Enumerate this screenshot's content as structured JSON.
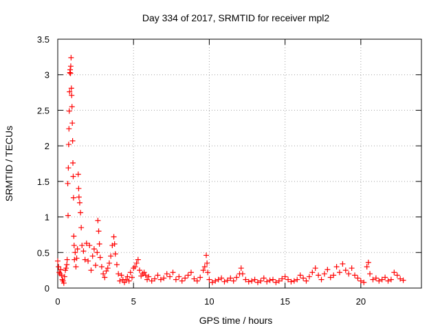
{
  "chart_data": {
    "type": "scatter",
    "title": "Day 334 of 2017, SRMTID for receiver mpl2",
    "xlabel": "GPS time / hours",
    "ylabel": "SRMTID / TECUs",
    "xlim": [
      0,
      24
    ],
    "ylim": [
      0,
      3.5
    ],
    "xticks": [
      0,
      5,
      10,
      15,
      20
    ],
    "xtick_labels": [
      "0",
      "5",
      "10",
      "15",
      "20"
    ],
    "yticks": [
      0,
      0.5,
      1,
      1.5,
      2,
      2.5,
      3,
      3.5
    ],
    "ytick_labels": [
      "0",
      "0.5",
      "1",
      "1.5",
      "2",
      "2.5",
      "3",
      "3.5"
    ],
    "grid": true,
    "marker": "+",
    "series": [
      {
        "name": "SRMTID",
        "color": "#ff0000",
        "points": [
          [
            0.0,
            0.38
          ],
          [
            0.05,
            0.3
          ],
          [
            0.1,
            0.22
          ],
          [
            0.15,
            0.2
          ],
          [
            0.2,
            0.26
          ],
          [
            0.25,
            0.18
          ],
          [
            0.3,
            0.12
          ],
          [
            0.35,
            0.1
          ],
          [
            0.4,
            0.07
          ],
          [
            0.45,
            0.16
          ],
          [
            0.5,
            0.25
          ],
          [
            0.55,
            0.28
          ],
          [
            0.6,
            0.33
          ],
          [
            0.62,
            0.4
          ],
          [
            0.66,
            1.47
          ],
          [
            0.68,
            1.02
          ],
          [
            0.7,
            1.69
          ],
          [
            0.72,
            2.02
          ],
          [
            0.74,
            2.24
          ],
          [
            0.76,
            2.49
          ],
          [
            0.78,
            2.76
          ],
          [
            0.8,
            3.03
          ],
          [
            0.82,
            3.07
          ],
          [
            0.84,
            3.02
          ],
          [
            0.86,
            3.12
          ],
          [
            0.88,
            3.24
          ],
          [
            0.9,
            2.81
          ],
          [
            0.92,
            2.71
          ],
          [
            0.94,
            2.55
          ],
          [
            0.96,
            2.32
          ],
          [
            0.98,
            2.07
          ],
          [
            1.0,
            1.76
          ],
          [
            1.02,
            1.57
          ],
          [
            1.04,
            1.27
          ],
          [
            1.06,
            0.73
          ],
          [
            1.08,
            0.6
          ],
          [
            1.1,
            0.4
          ],
          [
            1.15,
            0.5
          ],
          [
            1.2,
            0.3
          ],
          [
            1.25,
            0.42
          ],
          [
            1.3,
            0.55
          ],
          [
            1.35,
            1.6
          ],
          [
            1.38,
            1.4
          ],
          [
            1.4,
            1.28
          ],
          [
            1.45,
            1.2
          ],
          [
            1.5,
            1.06
          ],
          [
            1.55,
            0.85
          ],
          [
            1.6,
            0.6
          ],
          [
            1.7,
            0.52
          ],
          [
            1.8,
            0.4
          ],
          [
            1.9,
            0.63
          ],
          [
            2.0,
            0.38
          ],
          [
            2.1,
            0.6
          ],
          [
            2.2,
            0.25
          ],
          [
            2.3,
            0.45
          ],
          [
            2.4,
            0.55
          ],
          [
            2.5,
            0.32
          ],
          [
            2.6,
            0.5
          ],
          [
            2.65,
            0.95
          ],
          [
            2.7,
            0.8
          ],
          [
            2.75,
            0.62
          ],
          [
            2.8,
            0.43
          ],
          [
            2.9,
            0.3
          ],
          [
            3.0,
            0.2
          ],
          [
            3.1,
            0.15
          ],
          [
            3.2,
            0.24
          ],
          [
            3.3,
            0.28
          ],
          [
            3.4,
            0.35
          ],
          [
            3.5,
            0.45
          ],
          [
            3.6,
            0.6
          ],
          [
            3.7,
            0.72
          ],
          [
            3.75,
            0.62
          ],
          [
            3.8,
            0.48
          ],
          [
            3.9,
            0.33
          ],
          [
            4.0,
            0.2
          ],
          [
            4.1,
            0.1
          ],
          [
            4.2,
            0.18
          ],
          [
            4.3,
            0.12
          ],
          [
            4.4,
            0.08
          ],
          [
            4.5,
            0.12
          ],
          [
            4.6,
            0.16
          ],
          [
            4.7,
            0.1
          ],
          [
            4.8,
            0.22
          ],
          [
            4.9,
            0.15
          ],
          [
            5.0,
            0.28
          ],
          [
            5.1,
            0.3
          ],
          [
            5.2,
            0.35
          ],
          [
            5.3,
            0.4
          ],
          [
            5.4,
            0.25
          ],
          [
            5.5,
            0.17
          ],
          [
            5.6,
            0.2
          ],
          [
            5.7,
            0.22
          ],
          [
            5.8,
            0.18
          ],
          [
            5.9,
            0.12
          ],
          [
            6.0,
            0.16
          ],
          [
            6.2,
            0.1
          ],
          [
            6.4,
            0.13
          ],
          [
            6.6,
            0.18
          ],
          [
            6.8,
            0.12
          ],
          [
            7.0,
            0.14
          ],
          [
            7.2,
            0.2
          ],
          [
            7.4,
            0.16
          ],
          [
            7.6,
            0.22
          ],
          [
            7.8,
            0.12
          ],
          [
            8.0,
            0.16
          ],
          [
            8.2,
            0.1
          ],
          [
            8.4,
            0.14
          ],
          [
            8.6,
            0.18
          ],
          [
            8.8,
            0.22
          ],
          [
            9.0,
            0.13
          ],
          [
            9.2,
            0.1
          ],
          [
            9.4,
            0.15
          ],
          [
            9.6,
            0.25
          ],
          [
            9.7,
            0.3
          ],
          [
            9.8,
            0.46
          ],
          [
            9.85,
            0.35
          ],
          [
            9.9,
            0.22
          ],
          [
            10.0,
            0.12
          ],
          [
            10.2,
            0.08
          ],
          [
            10.4,
            0.1
          ],
          [
            10.6,
            0.12
          ],
          [
            10.8,
            0.14
          ],
          [
            11.0,
            0.09
          ],
          [
            11.2,
            0.11
          ],
          [
            11.4,
            0.14
          ],
          [
            11.6,
            0.1
          ],
          [
            11.8,
            0.15
          ],
          [
            12.0,
            0.2
          ],
          [
            12.1,
            0.28
          ],
          [
            12.2,
            0.2
          ],
          [
            12.4,
            0.12
          ],
          [
            12.6,
            0.09
          ],
          [
            12.8,
            0.1
          ],
          [
            13.0,
            0.12
          ],
          [
            13.2,
            0.08
          ],
          [
            13.4,
            0.1
          ],
          [
            13.6,
            0.14
          ],
          [
            13.8,
            0.09
          ],
          [
            14.0,
            0.11
          ],
          [
            14.2,
            0.12
          ],
          [
            14.4,
            0.08
          ],
          [
            14.6,
            0.1
          ],
          [
            14.8,
            0.13
          ],
          [
            15.0,
            0.16
          ],
          [
            15.2,
            0.12
          ],
          [
            15.4,
            0.09
          ],
          [
            15.6,
            0.1
          ],
          [
            15.8,
            0.12
          ],
          [
            16.0,
            0.18
          ],
          [
            16.2,
            0.14
          ],
          [
            16.4,
            0.1
          ],
          [
            16.6,
            0.16
          ],
          [
            16.8,
            0.22
          ],
          [
            17.0,
            0.28
          ],
          [
            17.2,
            0.18
          ],
          [
            17.4,
            0.12
          ],
          [
            17.6,
            0.2
          ],
          [
            17.8,
            0.26
          ],
          [
            18.0,
            0.15
          ],
          [
            18.2,
            0.18
          ],
          [
            18.4,
            0.3
          ],
          [
            18.6,
            0.22
          ],
          [
            18.8,
            0.34
          ],
          [
            19.0,
            0.25
          ],
          [
            19.2,
            0.2
          ],
          [
            19.4,
            0.28
          ],
          [
            19.6,
            0.18
          ],
          [
            19.8,
            0.14
          ],
          [
            20.0,
            0.1
          ],
          [
            20.2,
            0.08
          ],
          [
            20.4,
            0.3
          ],
          [
            20.5,
            0.36
          ],
          [
            20.6,
            0.2
          ],
          [
            20.8,
            0.12
          ],
          [
            21.0,
            0.14
          ],
          [
            21.2,
            0.1
          ],
          [
            21.4,
            0.12
          ],
          [
            21.6,
            0.15
          ],
          [
            21.8,
            0.1
          ],
          [
            22.0,
            0.12
          ],
          [
            22.2,
            0.22
          ],
          [
            22.4,
            0.18
          ],
          [
            22.6,
            0.13
          ],
          [
            22.8,
            0.11
          ]
        ]
      }
    ]
  }
}
